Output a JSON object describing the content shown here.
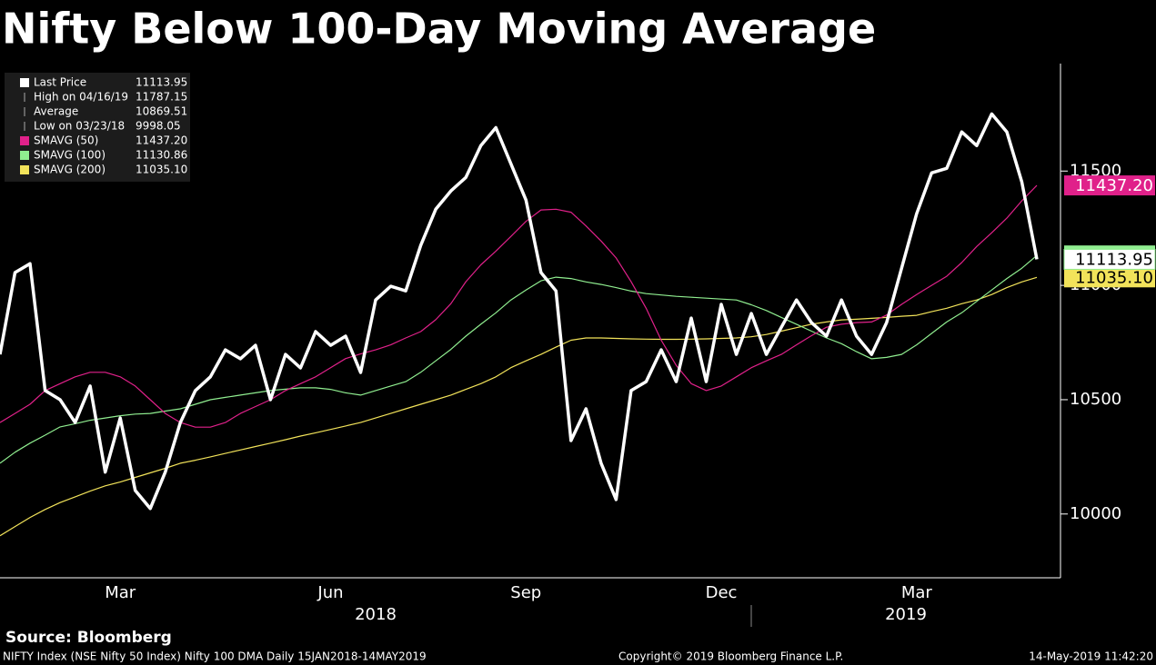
{
  "chart_data": {
    "type": "line",
    "title": "Nifty Below 100-Day Moving Average",
    "source": "Source: Bloomberg",
    "footer_left": "NIFTY Index (NSE Nifty 50 Index) Nifty 100 DMA  Daily 15JAN2018-14MAY2019",
    "footer_center": "Copyright© 2019 Bloomberg Finance L.P.",
    "footer_right": "14-May-2019 11:42:20",
    "categories": [
      null,
      null,
      null,
      null,
      null,
      null,
      null,
      null,
      "Mar",
      null,
      null,
      null,
      null,
      null,
      null,
      null,
      null,
      null,
      null,
      null,
      null,
      null,
      "Jun",
      null,
      null,
      null,
      null,
      null,
      null,
      null,
      null,
      null,
      null,
      null,
      null,
      "Sep",
      null,
      null,
      null,
      null,
      null,
      null,
      null,
      null,
      null,
      null,
      null,
      null,
      "Dec",
      null,
      null,
      null,
      null,
      null,
      null,
      null,
      null,
      null,
      null,
      null,
      null,
      "Mar",
      null,
      null,
      null,
      null,
      null,
      null,
      null,
      null
    ],
    "x_groups": [
      "2018",
      "2019"
    ],
    "ylim": [
      9725,
      11970
    ],
    "yticks": [
      10000,
      10500,
      11000,
      11500
    ],
    "stats": [
      {
        "label": "High on 04/16/19",
        "value": "11787.15"
      },
      {
        "label": "Average",
        "value": "10869.51"
      },
      {
        "label": "Low on 03/23/18",
        "value": "9998.05"
      }
    ],
    "series": [
      {
        "name": "Last Price",
        "color": "#ffffff",
        "last_label": "11113.95",
        "values": [
          10698,
          11056,
          11095,
          10540,
          10500,
          10400,
          10560,
          10183,
          10420,
          10103,
          10024,
          10183,
          10400,
          10540,
          10600,
          10718,
          10679,
          10738,
          10500,
          10698,
          10639,
          10798,
          10738,
          10778,
          10619,
          10936,
          10996,
          10976,
          11175,
          11333,
          11413,
          11472,
          11611,
          11690,
          11532,
          11373,
          11056,
          10976,
          10321,
          10460,
          10222,
          10063,
          10540,
          10579,
          10718,
          10579,
          10857,
          10579,
          10917,
          10698,
          10877,
          10698,
          10817,
          10936,
          10837,
          10778,
          10936,
          10778,
          10698,
          10837,
          11075,
          11313,
          11492,
          11512,
          11671,
          11611,
          11750,
          11671,
          11452,
          11113.95
        ]
      },
      {
        "name": "SMAVG (50)",
        "color": "#e0218a",
        "last_label": "11437.20",
        "values": [
          10400,
          10440,
          10480,
          10540,
          10570,
          10600,
          10620,
          10620,
          10600,
          10560,
          10500,
          10440,
          10400,
          10380,
          10380,
          10400,
          10440,
          10470,
          10500,
          10540,
          10570,
          10600,
          10640,
          10680,
          10700,
          10718,
          10740,
          10770,
          10798,
          10850,
          10920,
          11016,
          11090,
          11150,
          11214,
          11280,
          11330,
          11333,
          11320,
          11260,
          11194,
          11120,
          11016,
          10900,
          10760,
          10650,
          10570,
          10540,
          10560,
          10600,
          10640,
          10670,
          10698,
          10740,
          10780,
          10817,
          10830,
          10837,
          10840,
          10870,
          10917,
          10960,
          11000,
          11040,
          11100,
          11170,
          11230,
          11294,
          11370,
          11437.2
        ]
      },
      {
        "name": "SMAVG (100)",
        "color": "#90ee90",
        "last_label": "11130.86",
        "values": [
          10222,
          10270,
          10310,
          10345,
          10381,
          10395,
          10410,
          10420,
          10430,
          10437,
          10440,
          10450,
          10460,
          10480,
          10500,
          10510,
          10520,
          10530,
          10540,
          10546,
          10552,
          10552,
          10545,
          10530,
          10520,
          10540,
          10560,
          10579,
          10620,
          10670,
          10720,
          10778,
          10830,
          10880,
          10936,
          10980,
          11020,
          11036,
          11030,
          11015,
          11004,
          10990,
          10975,
          10964,
          10958,
          10952,
          10948,
          10944,
          10940,
          10936,
          10915,
          10890,
          10860,
          10830,
          10800,
          10770,
          10745,
          10710,
          10679,
          10685,
          10698,
          10740,
          10790,
          10840,
          10880,
          10930,
          10980,
          11030,
          11075,
          11130.86
        ]
      },
      {
        "name": "SMAVG (200)",
        "color": "#f2e35a",
        "last_label": "11035.10",
        "values": [
          9905,
          9945,
          9985,
          10020,
          10050,
          10075,
          10100,
          10123,
          10140,
          10160,
          10180,
          10200,
          10222,
          10235,
          10250,
          10265,
          10280,
          10295,
          10310,
          10325,
          10341,
          10355,
          10370,
          10385,
          10400,
          10420,
          10440,
          10460,
          10480,
          10500,
          10520,
          10545,
          10570,
          10600,
          10640,
          10670,
          10698,
          10730,
          10760,
          10770,
          10770,
          10768,
          10766,
          10765,
          10764,
          10764,
          10765,
          10766,
          10768,
          10770,
          10775,
          10785,
          10800,
          10815,
          10830,
          10840,
          10849,
          10852,
          10856,
          10860,
          10865,
          10869,
          10885,
          10900,
          10920,
          10936,
          10960,
          10990,
          11015,
          11035.1
        ]
      }
    ]
  }
}
